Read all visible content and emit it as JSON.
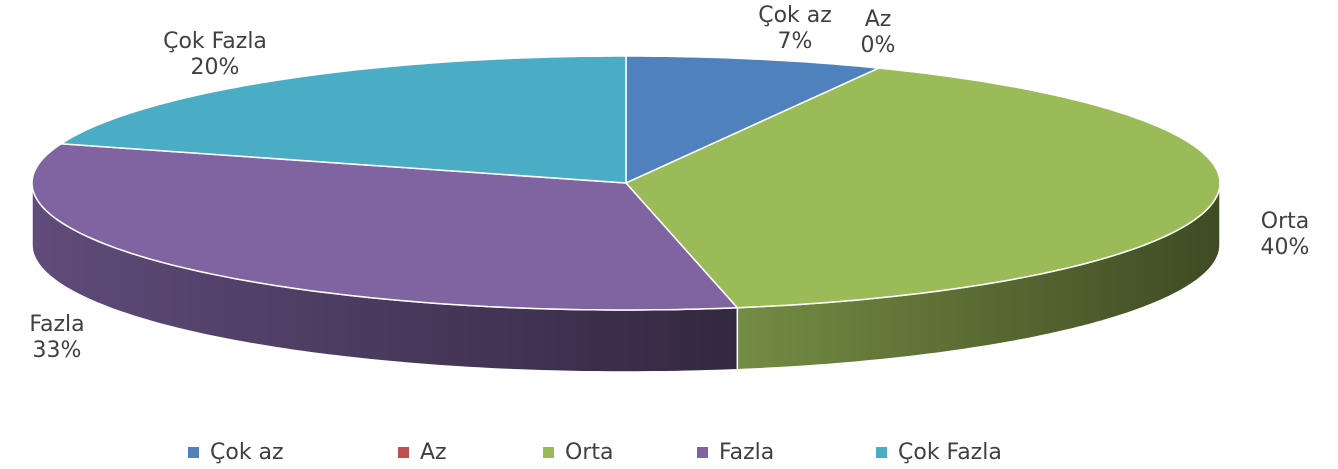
{
  "chart_data": {
    "type": "pie3d",
    "categories": [
      "Çok az",
      "Az",
      "Orta",
      "Fazla",
      "Çok Fazla"
    ],
    "values": [
      7,
      0,
      40,
      33,
      20
    ],
    "value_labels": [
      "7%",
      "0%",
      "40%",
      "33%",
      "20%"
    ],
    "colors": [
      "#4f81bd",
      "#c0504d",
      "#9bbb59",
      "#8064a2",
      "#4bacc6"
    ],
    "legend": "bottom"
  }
}
